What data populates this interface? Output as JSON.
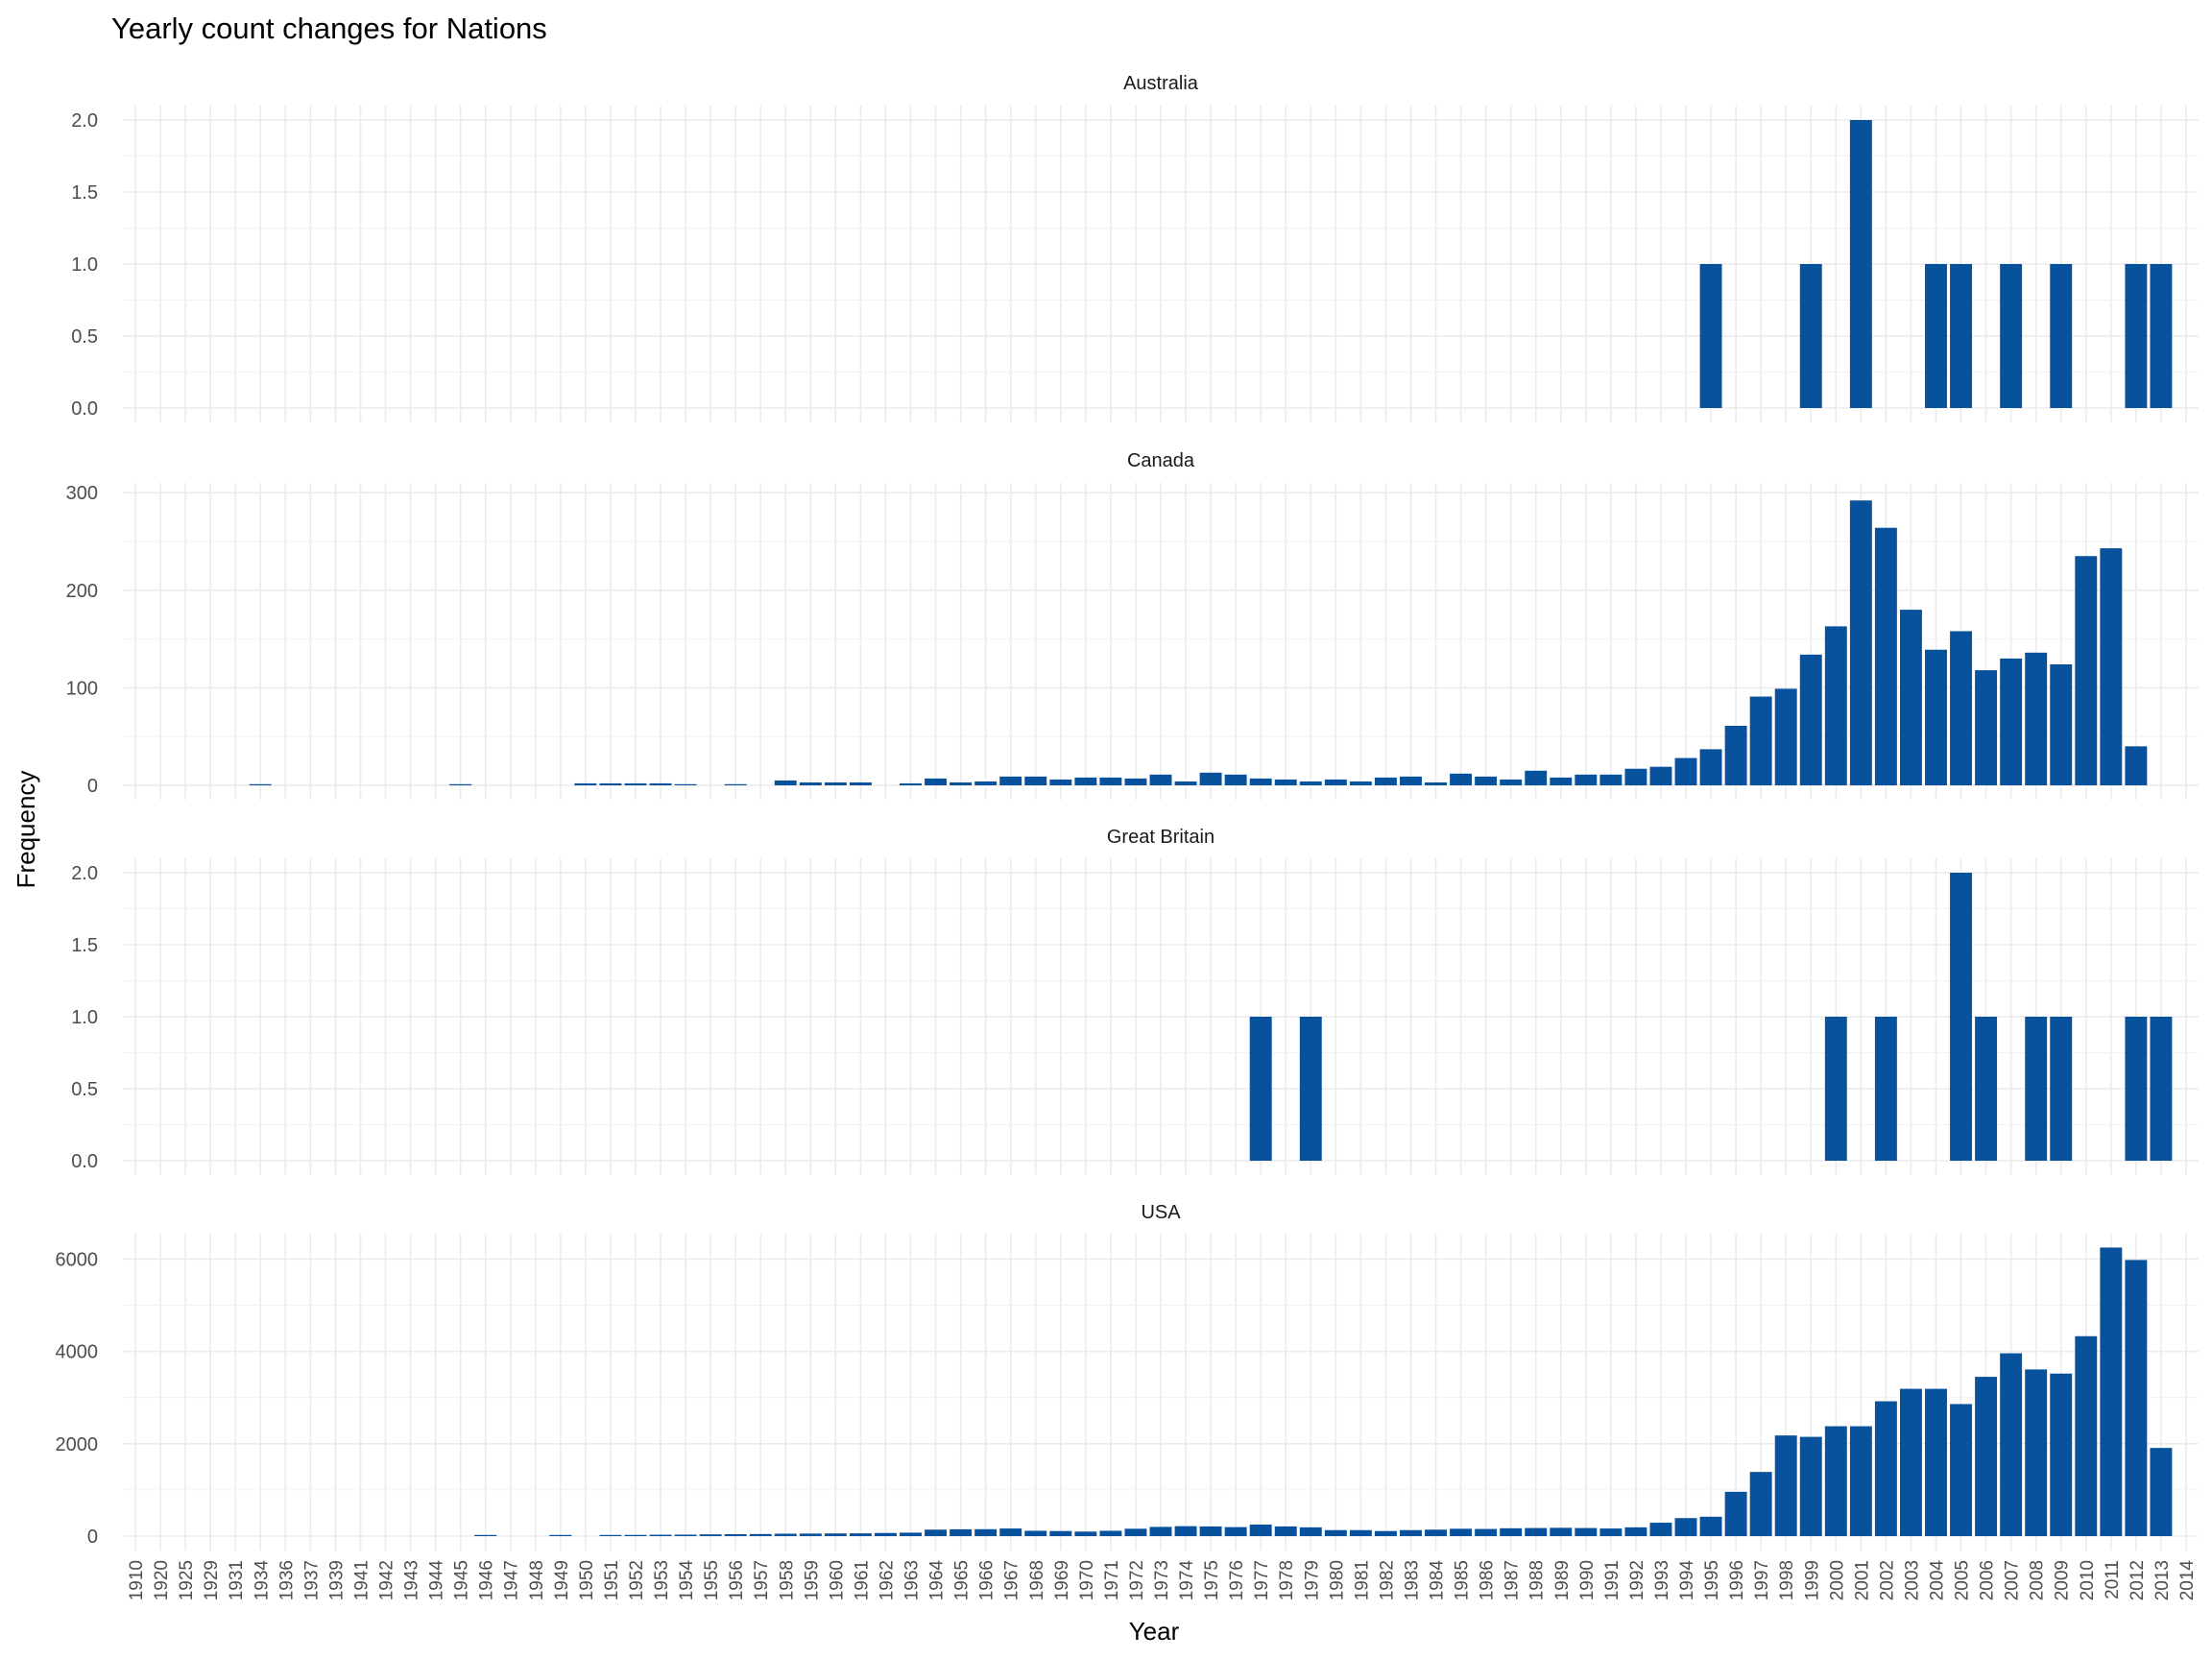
{
  "chart_data": {
    "type": "bar",
    "title": "Yearly count changes for Nations",
    "xlabel": "Year",
    "ylabel": "Frequency",
    "bar_color": "#08519c",
    "grid": true,
    "categories": [
      "1910",
      "1920",
      "1925",
      "1929",
      "1931",
      "1934",
      "1936",
      "1937",
      "1939",
      "1941",
      "1942",
      "1943",
      "1944",
      "1945",
      "1946",
      "1947",
      "1948",
      "1949",
      "1950",
      "1951",
      "1952",
      "1953",
      "1954",
      "1955",
      "1956",
      "1957",
      "1958",
      "1959",
      "1960",
      "1961",
      "1962",
      "1963",
      "1964",
      "1965",
      "1966",
      "1967",
      "1968",
      "1969",
      "1970",
      "1971",
      "1972",
      "1973",
      "1974",
      "1975",
      "1976",
      "1977",
      "1978",
      "1979",
      "1980",
      "1981",
      "1982",
      "1983",
      "1984",
      "1985",
      "1986",
      "1987",
      "1988",
      "1989",
      "1990",
      "1991",
      "1992",
      "1993",
      "1994",
      "1995",
      "1996",
      "1997",
      "1998",
      "1999",
      "2000",
      "2001",
      "2002",
      "2003",
      "2004",
      "2005",
      "2006",
      "2007",
      "2008",
      "2009",
      "2010",
      "2011",
      "2012",
      "2013",
      "2014"
    ],
    "panels": [
      {
        "name": "Australia",
        "ylim": [
          0,
          2.1
        ],
        "yticks": [
          0,
          0.5,
          1,
          1.5,
          2
        ],
        "ytick_labels": [
          "0.0",
          "0.5",
          "1.0",
          "1.5",
          "2.0"
        ],
        "values": {
          "1995": 1,
          "1999": 1,
          "2001": 2,
          "2004": 1,
          "2005": 1,
          "2007": 1,
          "2009": 1,
          "2012": 1,
          "2013": 1
        }
      },
      {
        "name": "Canada",
        "ylim": [
          0,
          310
        ],
        "yticks": [
          0,
          100,
          200,
          300
        ],
        "ytick_labels": [
          "0",
          "100",
          "200",
          "300"
        ],
        "values": {
          "1934": 1,
          "1945": 1,
          "1950": 2,
          "1951": 2,
          "1952": 2,
          "1953": 2,
          "1954": 1,
          "1956": 1,
          "1958": 5,
          "1959": 3,
          "1960": 3,
          "1961": 3,
          "1963": 2,
          "1964": 7,
          "1965": 3,
          "1966": 4,
          "1967": 9,
          "1968": 9,
          "1969": 6,
          "1970": 8,
          "1971": 8,
          "1972": 7,
          "1973": 11,
          "1974": 4,
          "1975": 13,
          "1976": 11,
          "1977": 7,
          "1978": 6,
          "1979": 4,
          "1980": 6,
          "1981": 4,
          "1982": 8,
          "1983": 9,
          "1984": 3,
          "1985": 12,
          "1986": 9,
          "1987": 6,
          "1988": 15,
          "1989": 8,
          "1990": 11,
          "1991": 11,
          "1992": 17,
          "1993": 19,
          "1994": 28,
          "1995": 37,
          "1996": 61,
          "1997": 91,
          "1998": 99,
          "1999": 134,
          "2000": 163,
          "2001": 292,
          "2002": 264,
          "2003": 180,
          "2004": 139,
          "2005": 158,
          "2006": 118,
          "2007": 130,
          "2008": 136,
          "2009": 124,
          "2010": 235,
          "2011": 243,
          "2012": 40
        }
      },
      {
        "name": "Great Britain",
        "ylim": [
          0,
          2.1
        ],
        "yticks": [
          0,
          0.5,
          1,
          1.5,
          2
        ],
        "ytick_labels": [
          "0.0",
          "0.5",
          "1.0",
          "1.5",
          "2.0"
        ],
        "values": {
          "1977": 1,
          "1979": 1,
          "2000": 1,
          "2002": 1,
          "2005": 2,
          "2006": 1,
          "2008": 1,
          "2009": 1,
          "2012": 1,
          "2013": 1
        }
      },
      {
        "name": "USA",
        "ylim": [
          0,
          6550
        ],
        "yticks": [
          0,
          2000,
          4000,
          6000
        ],
        "ytick_labels": [
          "0",
          "2000",
          "4000",
          "6000"
        ],
        "values": {
          "1946": 12,
          "1949": 15,
          "1951": 22,
          "1952": 26,
          "1953": 30,
          "1954": 32,
          "1955": 38,
          "1956": 42,
          "1957": 45,
          "1958": 52,
          "1959": 55,
          "1960": 58,
          "1961": 60,
          "1962": 68,
          "1963": 75,
          "1964": 140,
          "1965": 148,
          "1966": 150,
          "1967": 165,
          "1968": 115,
          "1969": 110,
          "1970": 98,
          "1971": 115,
          "1972": 160,
          "1973": 200,
          "1974": 215,
          "1975": 210,
          "1976": 195,
          "1977": 250,
          "1978": 210,
          "1979": 190,
          "1980": 130,
          "1981": 130,
          "1982": 110,
          "1983": 130,
          "1984": 140,
          "1985": 160,
          "1986": 155,
          "1987": 170,
          "1988": 175,
          "1989": 180,
          "1990": 175,
          "1991": 165,
          "1992": 190,
          "1993": 290,
          "1994": 390,
          "1995": 420,
          "1996": 960,
          "1997": 1390,
          "1998": 2180,
          "1999": 2150,
          "2000": 2380,
          "2001": 2380,
          "2002": 2920,
          "2003": 3190,
          "2004": 3190,
          "2005": 2860,
          "2006": 3450,
          "2007": 3960,
          "2008": 3610,
          "2009": 3520,
          "2010": 4330,
          "2011": 6250,
          "2012": 5980,
          "2013": 1910
        }
      }
    ]
  }
}
